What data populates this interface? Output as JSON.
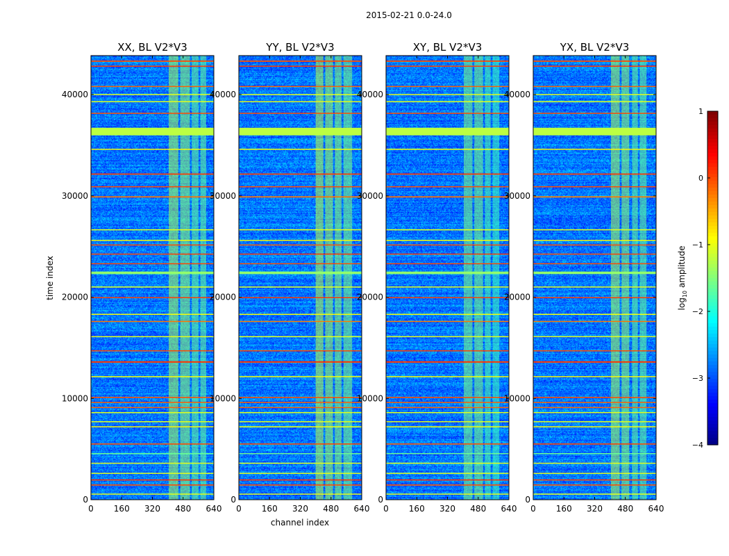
{
  "chart_data": {
    "type": "heatmap",
    "suptitle": "2015-02-21 0.0-24.0",
    "xlabel": "channel index",
    "ylabel": "time index",
    "xlim": [
      0,
      640
    ],
    "ylim": [
      0,
      43850
    ],
    "xticks": [
      "0",
      "160",
      "320",
      "480",
      "640"
    ],
    "xtick_values": [
      0,
      160,
      320,
      480,
      640
    ],
    "yticks": [
      "0",
      "10000",
      "20000",
      "30000",
      "40000"
    ],
    "ytick_values": [
      0,
      10000,
      20000,
      30000,
      40000
    ],
    "background_log_amplitude": -2.8,
    "panels": [
      {
        "title": "XX, BL V2*V3",
        "bands": [
          [
            405,
            455,
            -1.3
          ],
          [
            465,
            515,
            -1.4
          ],
          [
            525,
            560,
            -1.6
          ],
          [
            570,
            600,
            -1.6
          ]
        ]
      },
      {
        "title": "YY, BL V2*V3",
        "bands": [
          [
            400,
            440,
            -1.2
          ],
          [
            450,
            490,
            -1.3
          ],
          [
            500,
            535,
            -1.4
          ],
          [
            545,
            590,
            -1.5
          ]
        ]
      },
      {
        "title": "XY, BL V2*V3",
        "bands": [
          [
            405,
            450,
            -1.5
          ],
          [
            460,
            505,
            -1.5
          ],
          [
            515,
            545,
            -1.7
          ],
          [
            555,
            590,
            -1.8
          ]
        ]
      },
      {
        "title": "YX, BL V2*V3",
        "bands": [
          [
            405,
            450,
            -1.3
          ],
          [
            460,
            500,
            -1.4
          ],
          [
            515,
            545,
            -1.6
          ],
          [
            555,
            590,
            -1.6
          ]
        ]
      }
    ],
    "rfi_rows": [
      {
        "t": 43300,
        "w": 120,
        "v": 0.0
      },
      {
        "t": 42800,
        "w": 80,
        "v": 0.1
      },
      {
        "t": 40800,
        "w": 80,
        "v": -0.1
      },
      {
        "t": 40000,
        "w": 80,
        "v": -1.0
      },
      {
        "t": 39300,
        "w": 80,
        "v": -1.0
      },
      {
        "t": 38150,
        "w": 100,
        "v": 0.0
      },
      {
        "t": 36350,
        "w": 750,
        "v": -1.2
      },
      {
        "t": 34600,
        "w": 90,
        "v": -0.9
      },
      {
        "t": 32150,
        "w": 120,
        "v": 0.1
      },
      {
        "t": 30900,
        "w": 100,
        "v": 0.0
      },
      {
        "t": 29900,
        "w": 120,
        "v": -0.2
      },
      {
        "t": 26650,
        "w": 80,
        "v": -1.0
      },
      {
        "t": 25600,
        "w": 100,
        "v": -0.9
      },
      {
        "t": 25150,
        "w": 100,
        "v": 0.0
      },
      {
        "t": 24250,
        "w": 90,
        "v": 0.1
      },
      {
        "t": 23300,
        "w": 90,
        "v": 0.0
      },
      {
        "t": 22400,
        "w": 250,
        "v": -1.4
      },
      {
        "t": 21000,
        "w": 80,
        "v": -1.0
      },
      {
        "t": 19950,
        "w": 100,
        "v": 0.1
      },
      {
        "t": 18300,
        "w": 80,
        "v": -0.9
      },
      {
        "t": 17600,
        "w": 90,
        "v": -0.2
      },
      {
        "t": 16100,
        "w": 80,
        "v": -1.0
      },
      {
        "t": 14700,
        "w": 90,
        "v": 0.0
      },
      {
        "t": 13600,
        "w": 140,
        "v": 0.1
      },
      {
        "t": 12150,
        "w": 80,
        "v": -0.9
      },
      {
        "t": 10100,
        "w": 110,
        "v": 0.0
      },
      {
        "t": 9600,
        "w": 90,
        "v": -0.1
      },
      {
        "t": 9100,
        "w": 80,
        "v": -0.1
      },
      {
        "t": 8600,
        "w": 80,
        "v": -1.0
      },
      {
        "t": 7700,
        "w": 80,
        "v": -1.0
      },
      {
        "t": 7200,
        "w": 90,
        "v": -0.9
      },
      {
        "t": 5500,
        "w": 110,
        "v": 0.0
      },
      {
        "t": 4550,
        "w": 80,
        "v": -1.6
      },
      {
        "t": 3600,
        "w": 80,
        "v": -1.0
      },
      {
        "t": 2600,
        "w": 80,
        "v": -1.0
      },
      {
        "t": 1950,
        "w": 110,
        "v": 0.1
      },
      {
        "t": 1450,
        "w": 110,
        "v": 0.0
      },
      {
        "t": 550,
        "w": 90,
        "v": -1.0
      }
    ],
    "colorbar": {
      "label": "log10 amplitude",
      "label_main": "log",
      "label_sub": "10",
      "label_rest": " amplitude",
      "range": [
        -4,
        1
      ],
      "ticks": [
        "1",
        "0",
        "−1",
        "−2",
        "−3",
        "−4"
      ],
      "tick_values": [
        1,
        0,
        -1,
        -2,
        -3,
        -4
      ],
      "colormap": "jet"
    }
  }
}
